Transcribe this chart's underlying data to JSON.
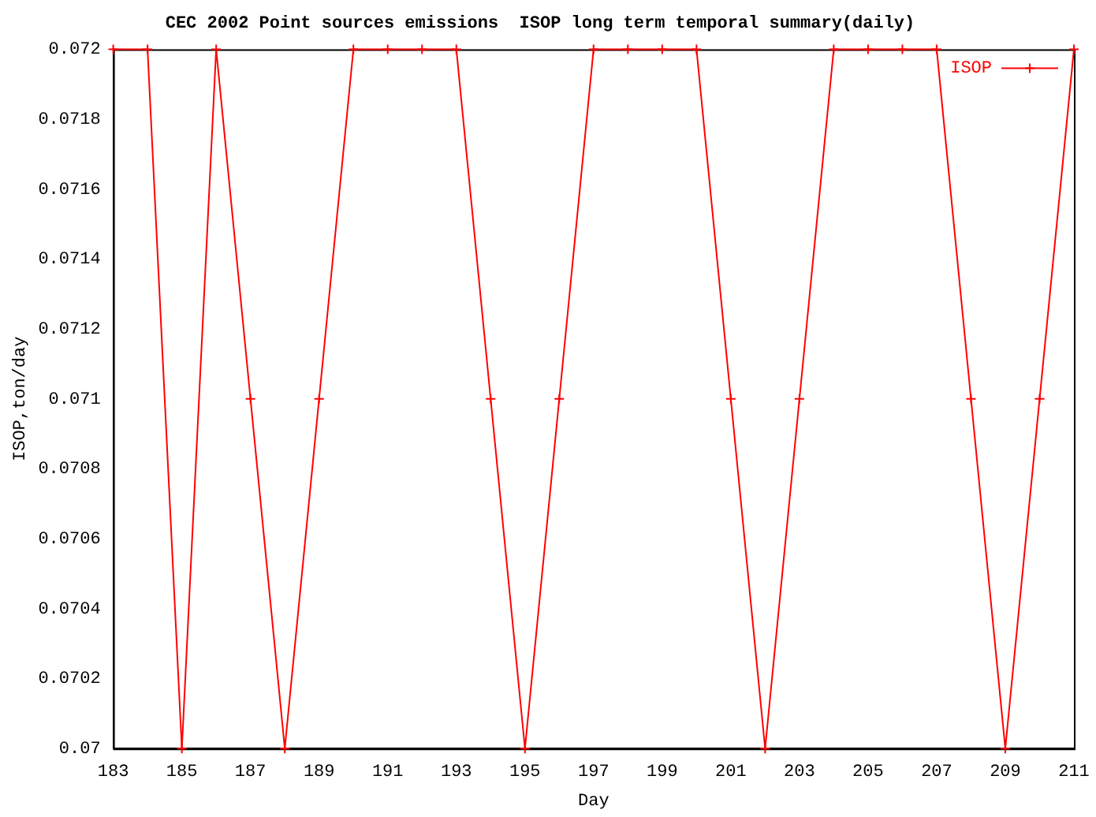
{
  "chart_data": {
    "type": "line",
    "title": "CEC 2002 Point sources emissions  ISOP long term temporal summary(daily)",
    "xlabel": "Day",
    "ylabel": "ISOP,ton/day",
    "x": [
      183,
      184,
      185,
      186,
      187,
      188,
      189,
      190,
      191,
      192,
      193,
      194,
      195,
      196,
      197,
      198,
      199,
      200,
      201,
      202,
      203,
      204,
      205,
      206,
      207,
      208,
      209,
      210,
      211
    ],
    "series": [
      {
        "name": "ISOP",
        "color": "#ff0000",
        "values": [
          0.072,
          0.072,
          0.07,
          0.072,
          0.071,
          0.07,
          0.071,
          0.072,
          0.072,
          0.072,
          0.072,
          0.071,
          0.07,
          0.071,
          0.072,
          0.072,
          0.072,
          0.072,
          0.071,
          0.07,
          0.071,
          0.072,
          0.072,
          0.072,
          0.072,
          0.071,
          0.07,
          0.071,
          0.072
        ]
      }
    ],
    "xlim": [
      183,
      211
    ],
    "xticks": [
      183,
      185,
      187,
      189,
      191,
      193,
      195,
      197,
      199,
      201,
      203,
      205,
      207,
      209,
      211
    ],
    "ylim": [
      0.07,
      0.072
    ],
    "yticks": [
      0.07,
      0.0702,
      0.0704,
      0.0706,
      0.0708,
      0.071,
      0.0712,
      0.0714,
      0.0716,
      0.0718,
      0.072
    ],
    "grid": false,
    "legend": "top right",
    "marker": "cross",
    "line_style": "solid"
  }
}
